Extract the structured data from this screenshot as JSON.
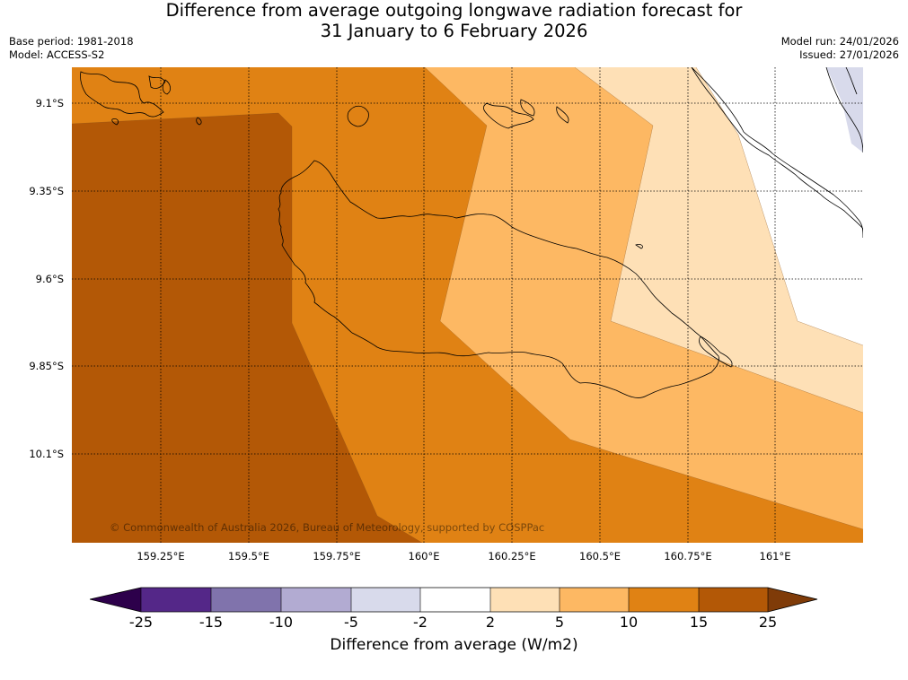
{
  "header": {
    "title_line1": "Difference from average outgoing longwave radiation forecast for",
    "title_line2": "31 January to 6 February 2026",
    "base_period": "Base period: 1981-2018",
    "model": "Model: ACCESS-S2",
    "model_run": "Model run: 24/01/2026",
    "issued": "Issued: 27/01/2026"
  },
  "map": {
    "copyright": "© Commonwealth of Australia 2026, Bureau of Meteorology, supported by COSPPac",
    "lat_labels": [
      "9.1°S",
      "9.35°S",
      "9.6°S",
      "9.85°S",
      "10.1°S"
    ],
    "lon_labels": [
      "159.25°E",
      "159.5°E",
      "159.75°E",
      "160°E",
      "160.25°E",
      "160.5°E",
      "160.75°E",
      "161°E"
    ]
  },
  "colorbar": {
    "label": "Difference from average (W/m2)",
    "ticks": [
      "-25",
      "-15",
      "-10",
      "-5",
      "-2",
      "2",
      "5",
      "10",
      "15",
      "25"
    ],
    "colors": {
      "below_-25": "#2d004b",
      "-25_-15": "#542788",
      "-15_-10": "#8073ac",
      "-10_-5": "#b2abd2",
      "-5_-2": "#d8daeb",
      "-2_2": "#ffffff",
      "2_5": "#fee0b6",
      "5_10": "#fdb863",
      "10_15": "#e08214",
      "15_25": "#b35806",
      "above_25": "#7f3b08"
    }
  }
}
